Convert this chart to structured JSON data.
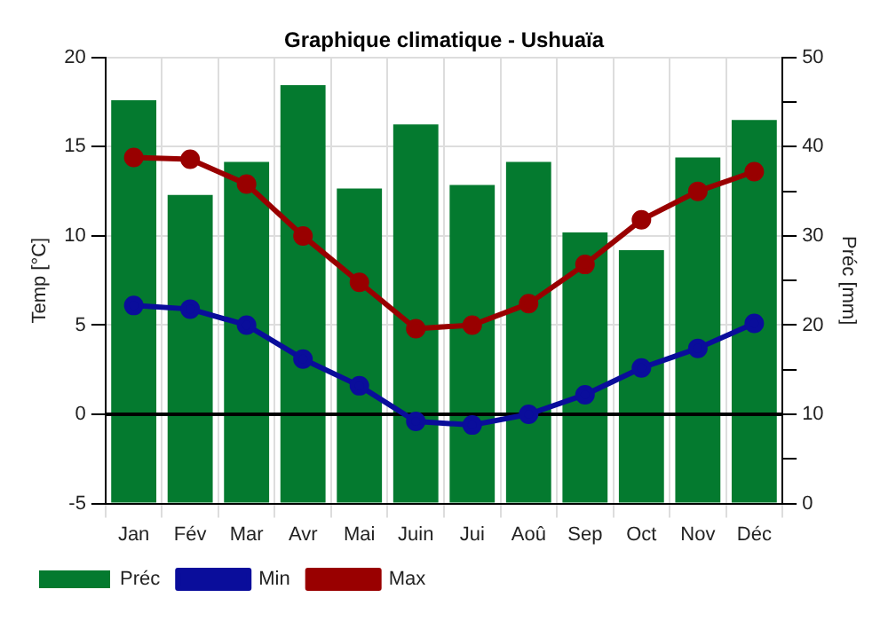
{
  "chart_data": {
    "type": "bar",
    "title": "Graphique climatique - Ushuaïa",
    "ylabel": "Temp [°C]",
    "y2label": "Préc [mm]",
    "categories": [
      "Jan",
      "Fév",
      "Mar",
      "Avr",
      "Mai",
      "Juin",
      "Jui",
      "Aoû",
      "Sep",
      "Oct",
      "Nov",
      "Déc"
    ],
    "series": [
      {
        "name": "Préc",
        "axis": "y2",
        "color": "#047a2f",
        "values": [
          45.2,
          34.6,
          38.3,
          46.9,
          35.3,
          42.5,
          35.7,
          38.3,
          30.4,
          28.4,
          38.8,
          43.0
        ]
      },
      {
        "name": "Min",
        "type": "line",
        "color": "#0a0d9b",
        "values": [
          6.1,
          5.9,
          5.0,
          3.1,
          1.6,
          -0.4,
          -0.6,
          0.0,
          1.1,
          2.6,
          3.7,
          5.1
        ]
      },
      {
        "name": "Max",
        "type": "line",
        "color": "#990000",
        "values": [
          14.4,
          14.3,
          12.9,
          10.0,
          7.4,
          4.8,
          5.0,
          6.2,
          8.4,
          10.9,
          12.5,
          13.6
        ]
      }
    ],
    "ylim": [
      -5,
      20
    ],
    "yticks": [
      -5,
      0,
      5,
      10,
      15,
      20
    ],
    "y2lim": [
      0,
      50
    ],
    "y2ticks": [
      0,
      {
        "value": 5,
        "label": null
      },
      10,
      {
        "value": 15,
        "label": null
      },
      20,
      {
        "value": 25,
        "label": null
      },
      30,
      {
        "value": 35,
        "label": null
      },
      40,
      {
        "value": 45,
        "label": null
      },
      50
    ],
    "ref_lines": [
      {
        "axis": "y",
        "value": 0,
        "color": "#000000"
      }
    ],
    "grid": true,
    "legend": "bottom left",
    "marker": "circle",
    "line_style": "solid"
  }
}
